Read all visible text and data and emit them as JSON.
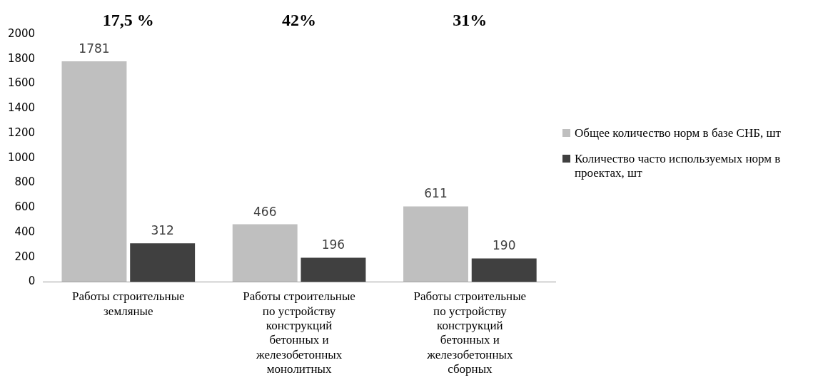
{
  "chart_data": {
    "type": "bar",
    "categories": [
      "Работы строительные земляные",
      "Работы строительные по устройству конструкций бетонных и железобетонных монолитных",
      "Работы строительные по устройству конструкций бетонных и железобетонных сборных"
    ],
    "series": [
      {
        "name": "Общее количество норм в базе СНБ, шт",
        "color": "#bfbfbf",
        "values": [
          1781,
          466,
          611
        ]
      },
      {
        "name": "Количество часто используемых норм в проектах, шт",
        "color": "#404040",
        "values": [
          312,
          196,
          190
        ]
      }
    ],
    "ylim": [
      0,
      2000
    ],
    "yticks": [
      0,
      200,
      400,
      600,
      800,
      1000,
      1200,
      1400,
      1600,
      1800,
      2000
    ],
    "annotations": [
      "17,5 %",
      "42%",
      "31%"
    ],
    "data_labels": true,
    "grid": false,
    "legend": "right"
  }
}
